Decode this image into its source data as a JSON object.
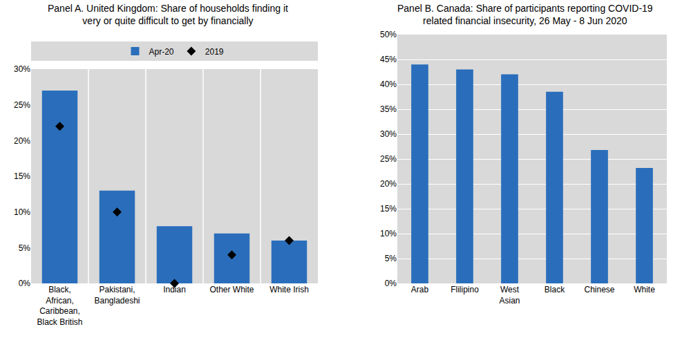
{
  "chart_data": [
    {
      "type": "bar",
      "title": "Panel A. United Kingdom: Share of households finding it very or quite difficult to get by financially",
      "categories": [
        "Black, African, Caribbean, Black British",
        "Pakistani, Bangladeshi",
        "Indian",
        "Other White",
        "White Irish"
      ],
      "series": [
        {
          "name": "Apr-20",
          "type": "bar",
          "color": "#2a6ebb",
          "values": [
            27,
            13,
            8,
            7,
            6
          ]
        },
        {
          "name": "2019",
          "type": "scatter",
          "marker": "diamond",
          "color": "#000000",
          "values": [
            22,
            10,
            0,
            4,
            6
          ]
        }
      ],
      "ylim": [
        0,
        30
      ],
      "yticks": [
        {
          "value": 0,
          "label": "0%"
        },
        {
          "value": 5,
          "label": "5%"
        },
        {
          "value": 10,
          "label": "10%"
        },
        {
          "value": 15,
          "label": "15%"
        },
        {
          "value": 20,
          "label": "20%"
        },
        {
          "value": 25,
          "label": "25%"
        },
        {
          "value": 30,
          "label": "30%"
        }
      ],
      "grid": "x",
      "legend": "top"
    },
    {
      "type": "bar",
      "title": "Panel B. Canada: Share of participants reporting COVID-19 related financial insecurity, 26 May - 8 Jun 2020",
      "categories": [
        "Arab",
        "Flilipino",
        "West Asian",
        "Black",
        "Chinese",
        "White"
      ],
      "values": [
        44,
        43,
        42,
        38.5,
        26.8,
        23.2
      ],
      "color": "#2a6ebb",
      "ylim": [
        0,
        50
      ],
      "yticks": [
        {
          "value": 0,
          "label": "0%"
        },
        {
          "value": 5,
          "label": "5%"
        },
        {
          "value": 10,
          "label": "10%"
        },
        {
          "value": 15,
          "label": "15%"
        },
        {
          "value": 20,
          "label": "20%"
        },
        {
          "value": 25,
          "label": "25%"
        },
        {
          "value": 30,
          "label": "30%"
        },
        {
          "value": 35,
          "label": "35%"
        },
        {
          "value": 40,
          "label": "40%"
        },
        {
          "value": 45,
          "label": "45%"
        },
        {
          "value": 50,
          "label": "50%"
        }
      ],
      "grid": true
    }
  ]
}
